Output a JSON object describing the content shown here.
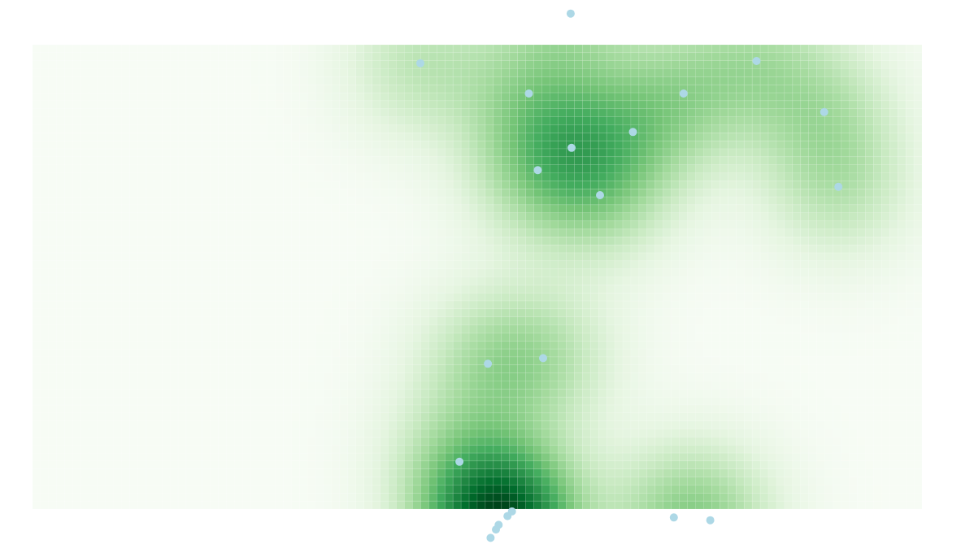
{
  "chart_data": {
    "type": "heatmap",
    "title": "",
    "xlabel": "",
    "ylabel": "",
    "grid": true,
    "legend": "none",
    "colormap": [
      "#f7fcf5",
      "#e5f5e0",
      "#c7e9c0",
      "#a1d99b",
      "#74c476",
      "#41ab5d",
      "#238b45",
      "#006d2c",
      "#00441b"
    ],
    "point_color": "#add8e6",
    "xlim": [
      0,
      1
    ],
    "ylim": [
      0,
      1
    ],
    "points": [
      {
        "x": 0.436,
        "y": 0.96
      },
      {
        "x": 0.558,
        "y": 0.895
      },
      {
        "x": 0.732,
        "y": 0.895
      },
      {
        "x": 0.814,
        "y": 0.965
      },
      {
        "x": 0.89,
        "y": 0.855
      },
      {
        "x": 0.675,
        "y": 0.812
      },
      {
        "x": 0.606,
        "y": 0.778
      },
      {
        "x": 0.568,
        "y": 0.73
      },
      {
        "x": 0.638,
        "y": 0.676
      },
      {
        "x": 0.906,
        "y": 0.694
      },
      {
        "x": 0.512,
        "y": 0.313
      },
      {
        "x": 0.574,
        "y": 0.325
      },
      {
        "x": 0.48,
        "y": 0.102
      },
      {
        "x": 0.539,
        "y": -0.005
      },
      {
        "x": 0.534,
        "y": -0.015
      },
      {
        "x": 0.524,
        "y": -0.034
      },
      {
        "x": 0.521,
        "y": -0.044
      },
      {
        "x": 0.515,
        "y": -0.062
      },
      {
        "x": 0.721,
        "y": -0.018
      },
      {
        "x": 0.762,
        "y": -0.024
      },
      {
        "x": 0.605,
        "y": 1.067
      }
    ]
  }
}
